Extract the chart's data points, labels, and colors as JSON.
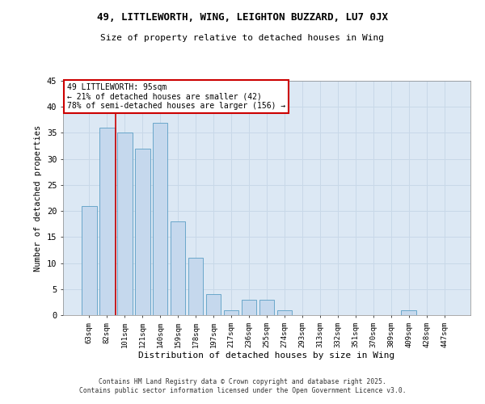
{
  "title1": "49, LITTLEWORTH, WING, LEIGHTON BUZZARD, LU7 0JX",
  "title2": "Size of property relative to detached houses in Wing",
  "xlabel": "Distribution of detached houses by size in Wing",
  "ylabel": "Number of detached properties",
  "categories": [
    "63sqm",
    "82sqm",
    "101sqm",
    "121sqm",
    "140sqm",
    "159sqm",
    "178sqm",
    "197sqm",
    "217sqm",
    "236sqm",
    "255sqm",
    "274sqm",
    "293sqm",
    "313sqm",
    "332sqm",
    "351sqm",
    "370sqm",
    "389sqm",
    "409sqm",
    "428sqm",
    "447sqm"
  ],
  "values": [
    21,
    36,
    35,
    32,
    37,
    18,
    11,
    4,
    1,
    3,
    3,
    1,
    0,
    0,
    0,
    0,
    0,
    0,
    1,
    0,
    0
  ],
  "bar_color": "#c5d8ed",
  "bar_edge_color": "#5a9ec4",
  "red_line_x": 1.5,
  "annotation_text": "49 LITTLEWORTH: 95sqm\n← 21% of detached houses are smaller (42)\n78% of semi-detached houses are larger (156) →",
  "annotation_box_color": "#ffffff",
  "annotation_box_edge": "#cc0000",
  "grid_color": "#c8d8e8",
  "background_color": "#dce8f4",
  "footer_line1": "Contains HM Land Registry data © Crown copyright and database right 2025.",
  "footer_line2": "Contains public sector information licensed under the Open Government Licence v3.0.",
  "ylim": [
    0,
    45
  ],
  "yticks": [
    0,
    5,
    10,
    15,
    20,
    25,
    30,
    35,
    40,
    45
  ]
}
